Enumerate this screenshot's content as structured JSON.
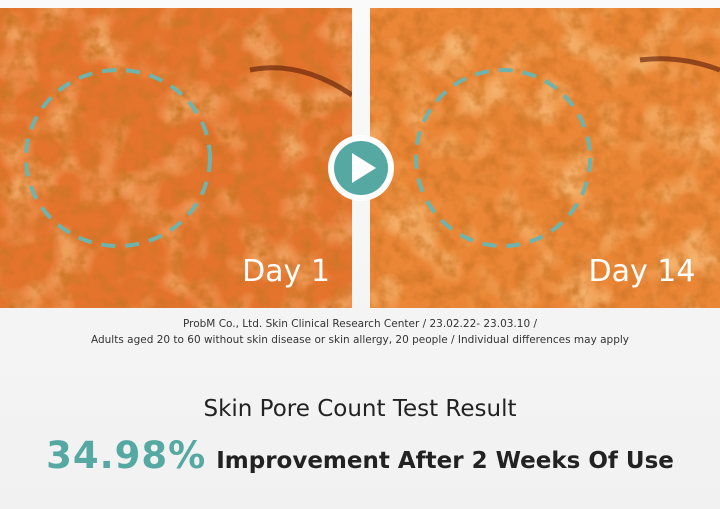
{
  "panels": [
    {
      "label": "Day 1"
    },
    {
      "label": "Day 14"
    }
  ],
  "caption": {
    "lines": [
      "ProbM Co., Ltd. Skin Clinical Research Center / 23.02.22- 23.03.10 /",
      "Adults aged 20 to 60 without skin disease or skin allergy, 20 people / Individual differences may apply"
    ]
  },
  "result": {
    "title": "Skin Pore Count Test Result",
    "value": "34.98%",
    "description": "Improvement After 2 Weeks Of Use"
  }
}
